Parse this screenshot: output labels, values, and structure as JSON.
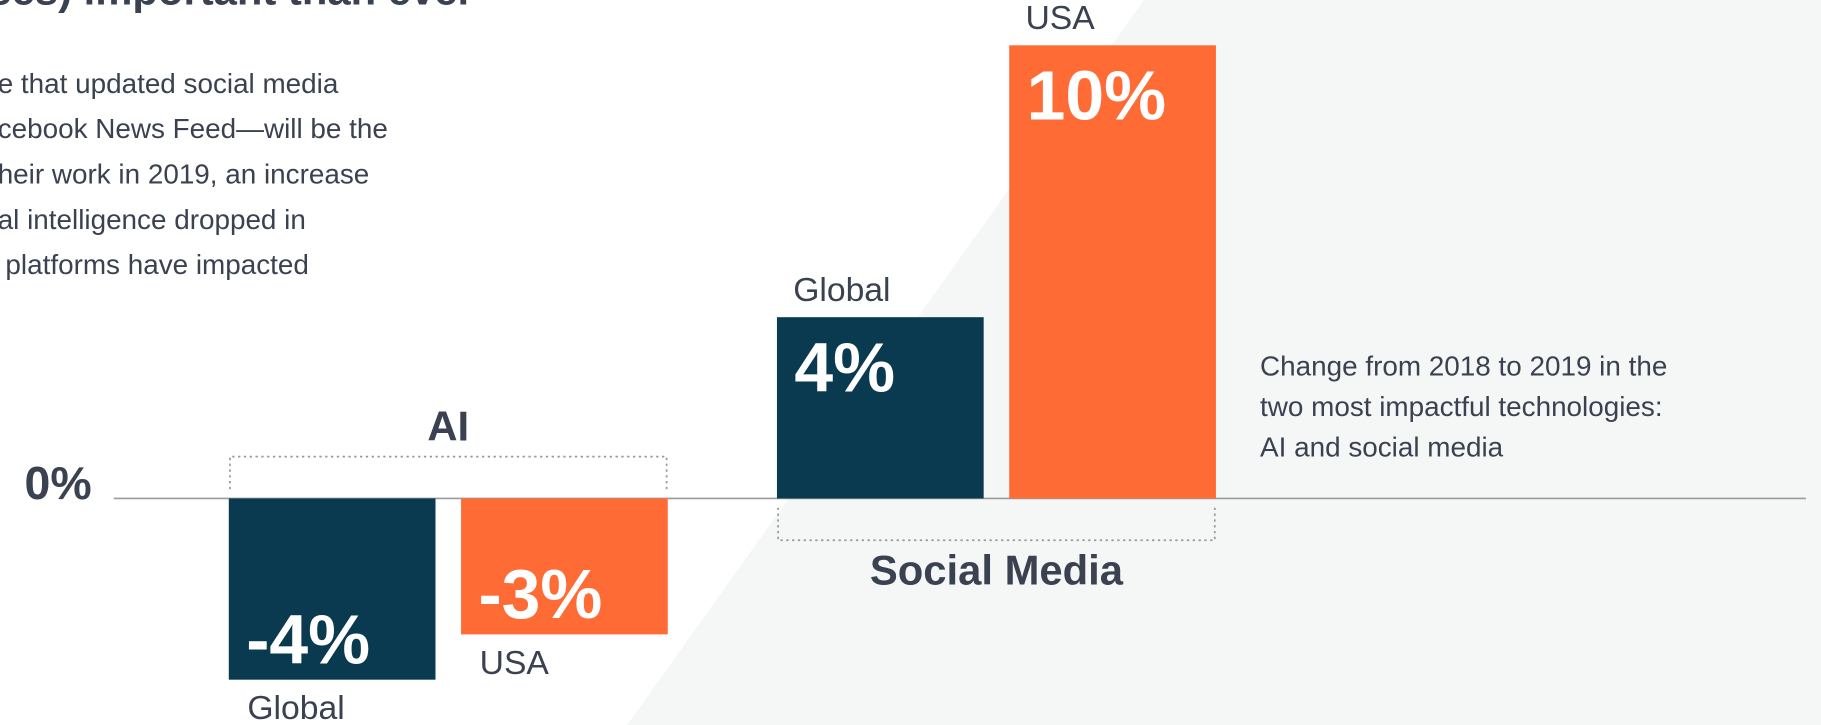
{
  "title": "ces) important than ever",
  "paragraph": [
    "e that updated social media",
    "cebook News Feed—will be the",
    "heir work in 2019, an increase",
    "al intelligence dropped in",
    " platforms have impacted"
  ],
  "chart_data": {
    "type": "bar",
    "categories": [
      "AI",
      "Social Media"
    ],
    "series": [
      {
        "name": "Global",
        "color": "#0a3a4f",
        "values": [
          -4,
          4
        ],
        "value_labels": [
          "-4%",
          "4%"
        ]
      },
      {
        "name": "USA",
        "color": "#ff6b35",
        "values": [
          -3,
          10
        ],
        "value_labels": [
          "-3%",
          "10%"
        ]
      }
    ],
    "ylim": [
      -5,
      11
    ],
    "yticks": [
      {
        "value": 0,
        "label": "0%"
      }
    ],
    "annotation": [
      "Change from 2018 to 2019 in the",
      "two most impactful technologies:",
      "AI and social media"
    ]
  }
}
